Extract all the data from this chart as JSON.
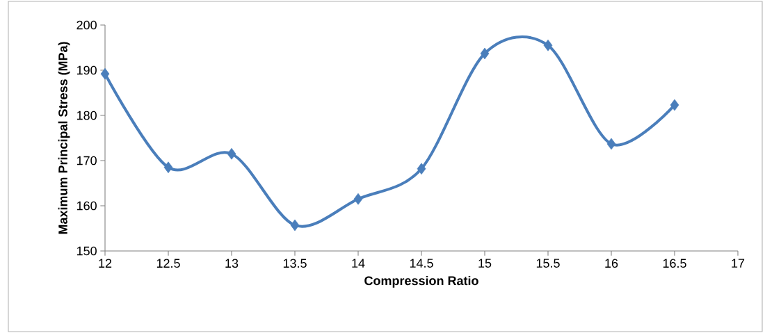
{
  "chart_data": {
    "type": "line",
    "xlabel": "Compression Ratio",
    "ylabel": "Maximum Principal Stress (MPa)",
    "x": [
      12,
      12.5,
      13,
      13.5,
      14,
      14.5,
      15,
      15.5,
      16,
      16.5
    ],
    "series": [
      {
        "color": "#4a7ebb",
        "values": [
          189.2,
          168.5,
          171.5,
          155.7,
          161.5,
          168.2,
          193.7,
          195.5,
          173.7,
          182.3
        ]
      }
    ],
    "xlim": [
      12,
      17
    ],
    "xticks": [
      12,
      12.5,
      13,
      13.5,
      14,
      14.5,
      15,
      15.5,
      16,
      16.5,
      17
    ],
    "ylim": [
      150,
      200
    ],
    "yticks": [
      150,
      160,
      170,
      180,
      190,
      200
    ],
    "marker": "diamond"
  }
}
